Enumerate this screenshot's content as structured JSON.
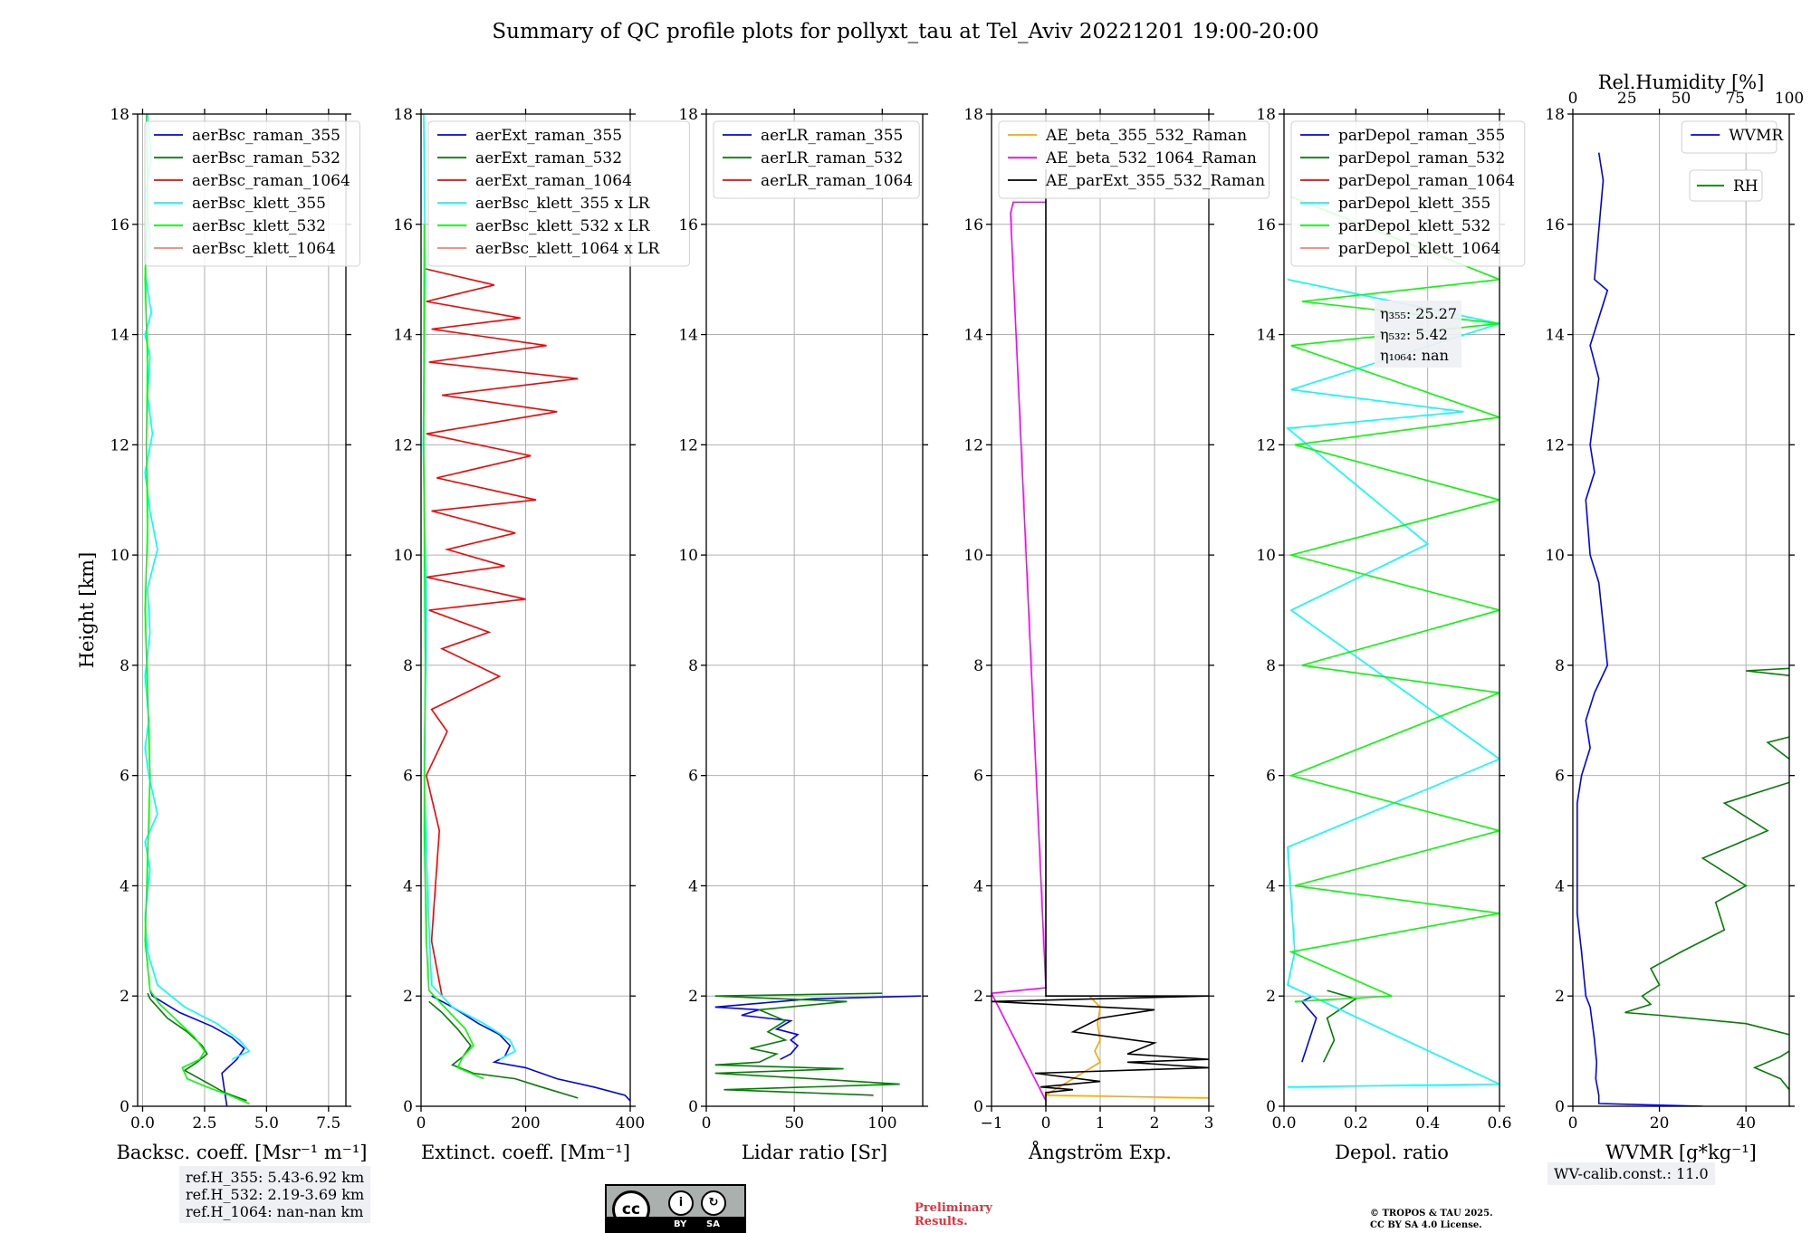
{
  "title": "Summary of QC profile plots for pollyxt_tau at Tel_Aviv 20221201 19:00-20:00",
  "ylabel": "Height [km]",
  "colors": {
    "blue": "#0000ff",
    "green": "#008000",
    "red": "#ff0000",
    "cyan": "#00ffff",
    "lime": "#00ff00",
    "salmon": "#fa8072",
    "orange": "#ffa500",
    "magenta": "#ff00ff",
    "black": "#000000"
  },
  "chart_data": [
    {
      "type": "line",
      "xlabel": "Backsc. coeff. [Msr⁻¹ m⁻¹]",
      "xlim": [
        -0.2,
        8.2
      ],
      "ylim": [
        0,
        18
      ],
      "xticks": [
        "0.0",
        "2.5",
        "5.0",
        "7.5"
      ],
      "xtickvals": [
        0,
        2.5,
        5,
        7.5
      ],
      "legend": [
        "aerBsc_raman_355",
        "aerBsc_raman_532",
        "aerBsc_raman_1064",
        "aerBsc_klett_355",
        "aerBsc_klett_532",
        "aerBsc_klett_1064"
      ],
      "legend_colors": [
        "blue",
        "green",
        "red",
        "cyan",
        "lime",
        "salmon"
      ],
      "series": [
        {
          "name": "aerBsc_raman_355",
          "color": "blue",
          "x": [
            0.3,
            0.4,
            1.5,
            2.8,
            3.6,
            4.1,
            3.8,
            3.2,
            3.4
          ],
          "y": [
            2.1,
            2.0,
            1.7,
            1.45,
            1.25,
            1.05,
            0.85,
            0.6,
            0.0
          ]
        },
        {
          "name": "aerBsc_raman_532",
          "color": "green",
          "x": [
            0.2,
            0.3,
            1.0,
            1.8,
            2.4,
            2.6,
            2.2,
            1.7,
            2.5,
            3.3,
            4.2
          ],
          "y": [
            2.05,
            1.95,
            1.6,
            1.35,
            1.1,
            0.95,
            0.8,
            0.65,
            0.45,
            0.25,
            0.1
          ]
        },
        {
          "name": "aerBsc_klett_355",
          "color": "cyan",
          "x": [
            0.2,
            0.35,
            0.1,
            0.3,
            0.1,
            0.2,
            0.35,
            0.1,
            0.3,
            0.2,
            0.4,
            0.1,
            0.3,
            0.6,
            0.2,
            0.3,
            0.1,
            0.25,
            0.1,
            0.25,
            0.6,
            0.1,
            0.3,
            0.2,
            0.1,
            0.2,
            0.6,
            1.7,
            3.0,
            3.9,
            4.3,
            3.6
          ],
          "y": [
            18,
            17.2,
            16.5,
            15.8,
            15.2,
            14.8,
            14.4,
            14.0,
            13.6,
            12.9,
            12.2,
            11.5,
            10.8,
            10.1,
            9.4,
            8.6,
            7.8,
            7.0,
            6.5,
            6.0,
            5.3,
            4.8,
            4.3,
            3.9,
            3.4,
            2.8,
            2.2,
            1.8,
            1.5,
            1.2,
            1.0,
            0.85
          ]
        },
        {
          "name": "aerBsc_klett_532",
          "color": "lime",
          "x": [
            0.15,
            0.2,
            0.1,
            0.2,
            0.15,
            0.2,
            0.1,
            0.2,
            0.3,
            0.2,
            0.1,
            0.3,
            0.7,
            1.4,
            2.1,
            2.5,
            2.3,
            1.6,
            1.8,
            2.6,
            3.5,
            4.3
          ],
          "y": [
            18,
            16.5,
            15.0,
            13.5,
            12.0,
            10.5,
            9.0,
            7.5,
            6.0,
            4.5,
            3.0,
            2.1,
            1.85,
            1.55,
            1.25,
            1.0,
            0.85,
            0.7,
            0.5,
            0.35,
            0.2,
            0.05
          ]
        }
      ]
    },
    {
      "type": "line",
      "xlabel": "Extinct. coeff. [Mm⁻¹]",
      "xlim": [
        0,
        400
      ],
      "ylim": [
        0,
        18
      ],
      "xticks": [
        "0",
        "200",
        "400"
      ],
      "xtickvals": [
        0,
        200,
        400
      ],
      "legend": [
        "aerExt_raman_355",
        "aerExt_raman_532",
        "aerExt_raman_1064",
        "aerBsc_klett_355 x LR",
        "aerBsc_klett_532 x LR",
        "aerBsc_klett_1064 x LR"
      ],
      "legend_colors": [
        "blue",
        "green",
        "red",
        "cyan",
        "lime",
        "salmon"
      ],
      "series": [
        {
          "name": "aerExt_raman_1064",
          "color": "red",
          "x": [
            5,
            140,
            10,
            190,
            20,
            240,
            15,
            300,
            40,
            260,
            10,
            210,
            30,
            220,
            20,
            180,
            50,
            160,
            10,
            200,
            15,
            130,
            40,
            150,
            20,
            50,
            10,
            35,
            20,
            40
          ],
          "y": [
            15.2,
            14.9,
            14.6,
            14.3,
            14.1,
            13.8,
            13.5,
            13.2,
            12.9,
            12.6,
            12.2,
            11.8,
            11.4,
            11.0,
            10.8,
            10.4,
            10.1,
            9.8,
            9.6,
            9.2,
            9.0,
            8.6,
            8.3,
            7.8,
            7.2,
            6.8,
            6.0,
            5.0,
            3.0,
            2.0
          ]
        },
        {
          "name": "aerExt_raman_355",
          "color": "blue",
          "x": [
            20,
            60,
            110,
            150,
            170,
            160,
            140,
            200,
            260,
            330,
            390,
            400
          ],
          "y": [
            2.0,
            1.8,
            1.5,
            1.3,
            1.1,
            0.9,
            0.8,
            0.7,
            0.5,
            0.35,
            0.2,
            0.1
          ]
        },
        {
          "name": "aerExt_raman_532",
          "color": "green",
          "x": [
            15,
            40,
            70,
            95,
            80,
            60,
            100,
            180,
            230,
            300
          ],
          "y": [
            1.9,
            1.7,
            1.4,
            1.1,
            0.9,
            0.75,
            0.6,
            0.5,
            0.35,
            0.15
          ]
        },
        {
          "name": "aerBsc_klett_355 x LR",
          "color": "cyan",
          "x": [
            5,
            8,
            4,
            10,
            6,
            12,
            20,
            60,
            120,
            170,
            180,
            150
          ],
          "y": [
            18,
            15.0,
            12.0,
            9.0,
            6.0,
            4.0,
            2.2,
            1.8,
            1.5,
            1.2,
            1.0,
            0.85
          ]
        },
        {
          "name": "aerBsc_klett_532 x LR",
          "color": "lime",
          "x": [
            6,
            5,
            8,
            6,
            10,
            15,
            45,
            85,
            100,
            80,
            70,
            120
          ],
          "y": [
            16.0,
            12.0,
            8.0,
            5.0,
            3.0,
            2.1,
            1.8,
            1.4,
            1.1,
            0.9,
            0.7,
            0.5
          ]
        }
      ]
    },
    {
      "type": "line",
      "xlabel": "Lidar ratio [Sr]",
      "xlim": [
        0,
        123
      ],
      "ylim": [
        0,
        18
      ],
      "xticks": [
        "0",
        "50",
        "100"
      ],
      "xtickvals": [
        0,
        50,
        100
      ],
      "legend": [
        "aerLR_raman_355",
        "aerLR_raman_532",
        "aerLR_raman_1064"
      ],
      "legend_colors": [
        "blue",
        "green",
        "red"
      ],
      "series": [
        {
          "name": "aerLR_raman_355",
          "color": "blue",
          "x": [
            122,
            60,
            5,
            30,
            20,
            48,
            40,
            52,
            48,
            52,
            48,
            42
          ],
          "y": [
            2.0,
            1.95,
            1.8,
            1.75,
            1.65,
            1.55,
            1.4,
            1.3,
            1.2,
            1.1,
            0.95,
            0.85
          ]
        },
        {
          "name": "aerLR_raman_532",
          "color": "green",
          "x": [
            100,
            5,
            80,
            30,
            45,
            35,
            45,
            25,
            40,
            30,
            5,
            78,
            5,
            60,
            110,
            10,
            95
          ],
          "y": [
            2.05,
            2.0,
            1.9,
            1.75,
            1.55,
            1.35,
            1.2,
            1.05,
            0.95,
            0.8,
            0.75,
            0.68,
            0.6,
            0.5,
            0.4,
            0.3,
            0.2
          ]
        }
      ]
    },
    {
      "type": "line",
      "xlabel": "Ångström Exp.",
      "xlim": [
        -1,
        3
      ],
      "ylim": [
        0,
        18
      ],
      "xticks": [
        "−1",
        "0",
        "1",
        "2",
        "3"
      ],
      "xtickvals": [
        -1,
        0,
        1,
        2,
        3
      ],
      "legend": [
        "AE_beta_355_532_Raman",
        "AE_beta_532_1064_Raman",
        "AE_parExt_355_532_Raman"
      ],
      "legend_colors": [
        "orange",
        "magenta",
        "black"
      ],
      "series": [
        {
          "name": "AE_beta_355_532_Raman",
          "color": "orange",
          "x": [
            0.8,
            1.0,
            0.95,
            1.0,
            0.9,
            1.0,
            0.0,
            3.0
          ],
          "y": [
            2.0,
            1.8,
            1.5,
            1.2,
            1.0,
            0.8,
            0.2,
            0.15
          ]
        },
        {
          "name": "AE_beta_532_1064_Raman",
          "color": "magenta",
          "x": [
            0,
            -0.6,
            -0.65,
            0,
            -1.0,
            0
          ],
          "y": [
            16.4,
            16.4,
            16.2,
            2.15,
            2.05,
            0.1
          ]
        },
        {
          "name": "AE_parExt_355_532_Raman",
          "color": "black",
          "x": [
            0,
            0,
            3,
            -1,
            2,
            1,
            0.5,
            2,
            1.5,
            3,
            1.5,
            3,
            -0.2,
            1.0,
            -0.1,
            0.5,
            0,
            0
          ],
          "y": [
            17,
            2.0,
            2.0,
            1.9,
            1.75,
            1.6,
            1.35,
            1.15,
            0.95,
            0.85,
            0.8,
            0.7,
            0.6,
            0.45,
            0.35,
            0.3,
            0.25,
            0
          ]
        }
      ]
    },
    {
      "type": "line",
      "xlabel": "Depol. ratio",
      "xlim": [
        0,
        0.6
      ],
      "ylim": [
        0,
        18
      ],
      "xticks": [
        "0.0",
        "0.2",
        "0.4",
        "0.6"
      ],
      "xtickvals": [
        0,
        0.2,
        0.4,
        0.6
      ],
      "legend": [
        "parDepol_raman_355",
        "parDepol_raman_532",
        "parDepol_raman_1064",
        "parDepol_klett_355",
        "parDepol_klett_532",
        "parDepol_klett_1064"
      ],
      "legend_colors": [
        "blue",
        "green",
        "red",
        "cyan",
        "lime",
        "salmon"
      ],
      "annot": [
        "η₃₅₅: 25.27",
        "η₅₃₂: 5.42",
        "η₁₀₆₄: nan"
      ],
      "series": [
        {
          "name": "parDepol_raman_355",
          "color": "blue",
          "x": [
            0.08,
            0.05,
            0.09,
            0.07,
            0.05
          ],
          "y": [
            2.0,
            1.9,
            1.6,
            1.2,
            0.8
          ]
        },
        {
          "name": "parDepol_raman_532",
          "color": "green",
          "x": [
            0.12,
            0.2,
            0.12,
            0.14,
            0.11
          ],
          "y": [
            2.1,
            1.95,
            1.6,
            1.2,
            0.8
          ]
        },
        {
          "name": "parDepol_klett_355",
          "color": "cyan",
          "x": [
            0.01,
            0.6,
            0.02,
            0.5,
            0.01,
            0.4,
            0.02,
            0.6,
            0.01,
            0.03,
            0.01,
            0.6,
            0.01
          ],
          "y": [
            15.0,
            14.2,
            13.0,
            12.6,
            12.3,
            10.2,
            9.0,
            6.3,
            4.7,
            2.8,
            2.2,
            0.4,
            0.35
          ]
        },
        {
          "name": "parDepol_klett_532",
          "color": "lime",
          "x": [
            0.02,
            0.6,
            0.05,
            0.6,
            0.02,
            0.6,
            0.03,
            0.6,
            0.02,
            0.6,
            0.05,
            0.6,
            0.02,
            0.6,
            0.03,
            0.6,
            0.02,
            0.3,
            0.03
          ],
          "y": [
            16.5,
            15.0,
            14.6,
            14.2,
            13.8,
            12.5,
            12.0,
            11.0,
            10.0,
            9.0,
            8.0,
            7.5,
            6.0,
            5.0,
            4.0,
            3.5,
            2.8,
            2.0,
            1.9
          ]
        }
      ]
    },
    {
      "type": "line",
      "xlabel": "WVMR [g*kg⁻¹]",
      "x2label": "Rel.Humidity [%]",
      "xlim": [
        0,
        50
      ],
      "ylim": [
        0,
        18
      ],
      "xticks": [
        "0",
        "20",
        "40"
      ],
      "xtickvals": [
        0,
        20,
        40
      ],
      "x2ticks": [
        "0",
        "25",
        "50",
        "75",
        "100"
      ],
      "x2tickvals": [
        0,
        25,
        50,
        75,
        100
      ],
      "legend": [
        "WVMR"
      ],
      "legend_colors": [
        "blue"
      ],
      "legend2": [
        "RH"
      ],
      "legend2_colors": [
        "green"
      ],
      "series": [
        {
          "name": "WVMR",
          "color": "blue",
          "x": [
            6,
            7,
            5,
            8,
            4,
            6,
            5,
            4,
            5,
            3,
            4,
            6,
            8,
            5,
            3,
            4,
            2,
            1,
            1,
            1,
            2,
            3,
            4,
            4.5,
            5,
            5.2,
            5.5,
            5.3,
            6,
            6,
            30
          ],
          "y": [
            17.3,
            16.8,
            15.0,
            14.8,
            13.8,
            13.2,
            12.6,
            12.0,
            11.5,
            11.0,
            10.0,
            9.5,
            8.0,
            7.5,
            7.0,
            6.5,
            6.0,
            5.5,
            4.5,
            3.5,
            2.8,
            2.0,
            1.8,
            1.5,
            1.2,
            1.0,
            0.8,
            0.5,
            0.2,
            0.05,
            0.0
          ]
        },
        {
          "name": "RH",
          "color": "green",
          "x": [
            90,
            60,
            85,
            40,
            75,
            65,
            45,
            55,
            35,
            45,
            30,
            40,
            33,
            35,
            25,
            18,
            20,
            16,
            18,
            14,
            12,
            20,
            40,
            50,
            52,
            48,
            42,
            48,
            50,
            52,
            55
          ],
          "y": [
            8.6,
            8.3,
            8.1,
            7.9,
            7.6,
            7.0,
            6.6,
            6.0,
            5.5,
            5.0,
            4.5,
            4.0,
            3.7,
            3.2,
            2.8,
            2.5,
            2.2,
            2.0,
            1.85,
            1.75,
            1.7,
            1.65,
            1.5,
            1.3,
            1.1,
            0.9,
            0.7,
            0.5,
            0.3,
            0.1,
            0.0
          ]
        }
      ]
    }
  ],
  "ref_info": [
    "ref.H_355: 5.43-6.92 km",
    "ref.H_532: 2.19-3.69 km",
    "ref.H_1064: nan-nan km"
  ],
  "wv_calib": "WV-calib.const.: 11.0",
  "cc_badge": {
    "main": "cc",
    "by": "BY",
    "sa": "SA",
    "by_icon": "i",
    "sa_icon": "↻"
  },
  "preliminary": [
    "Preliminary",
    "Results."
  ],
  "license": [
    "© TROPOS & TAU 2025.",
    "CC BY SA 4.0 License."
  ]
}
